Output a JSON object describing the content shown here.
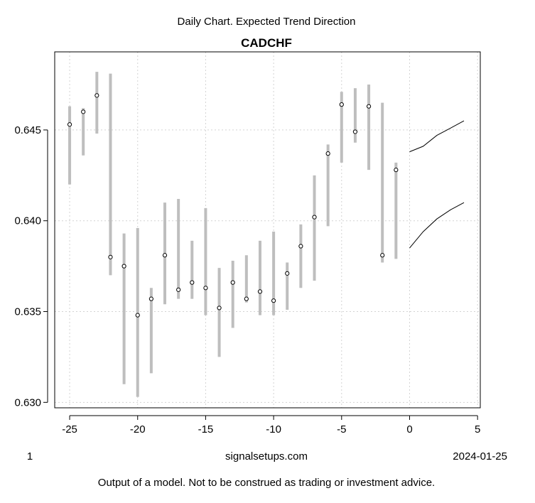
{
  "chart_data": {
    "type": "scatter",
    "subtitle": "Daily Chart. Expected Trend Direction",
    "title": "CADCHF",
    "xlabel": "",
    "ylabel": "",
    "xlim": [
      -26.1,
      5.2
    ],
    "ylim": [
      0.6297,
      0.6493
    ],
    "xticks": [
      -25,
      -20,
      -15,
      -10,
      -5,
      0,
      5
    ],
    "xtick_labels": [
      "-25",
      "-20",
      "-15",
      "-10",
      "-5",
      "0",
      "5"
    ],
    "yticks": [
      0.63,
      0.635,
      0.64,
      0.645
    ],
    "ytick_labels": [
      "0.630",
      "0.635",
      "0.640",
      "0.645"
    ],
    "grid": true,
    "series": [
      {
        "kind": "range",
        "color": "#bebebe",
        "x": [
          -25,
          -24,
          -23,
          -22,
          -21,
          -20,
          -19,
          -18,
          -17,
          -16,
          -15,
          -14,
          -13,
          -12,
          -11,
          -10,
          -9,
          -8,
          -7,
          -6,
          -5,
          -4,
          -3,
          -2,
          -1
        ],
        "low": [
          0.642,
          0.6436,
          0.6448,
          0.637,
          0.631,
          0.6303,
          0.6316,
          0.6354,
          0.6357,
          0.6357,
          0.6348,
          0.6325,
          0.6341,
          0.6355,
          0.6348,
          0.6348,
          0.6351,
          0.6363,
          0.6367,
          0.6397,
          0.6432,
          0.6443,
          0.6428,
          0.6377,
          0.6379
        ],
        "high": [
          0.6463,
          0.6462,
          0.6482,
          0.6481,
          0.6393,
          0.6396,
          0.6363,
          0.641,
          0.6412,
          0.6389,
          0.6407,
          0.6374,
          0.6378,
          0.6381,
          0.6389,
          0.6394,
          0.6377,
          0.6398,
          0.6425,
          0.6442,
          0.6471,
          0.6473,
          0.6475,
          0.6465,
          0.6432
        ]
      },
      {
        "kind": "point",
        "x": [
          -25,
          -24,
          -23,
          -22,
          -21,
          -20,
          -19,
          -18,
          -17,
          -16,
          -15,
          -14,
          -13,
          -12,
          -11,
          -10,
          -9,
          -8,
          -7,
          -6,
          -5,
          -4,
          -3,
          -2,
          -1
        ],
        "y": [
          0.6453,
          0.646,
          0.6469,
          0.638,
          0.6375,
          0.6348,
          0.6357,
          0.6381,
          0.6362,
          0.6366,
          0.6363,
          0.6352,
          0.6366,
          0.6357,
          0.6361,
          0.6356,
          0.6371,
          0.6386,
          0.6402,
          0.6437,
          0.6464,
          0.6449,
          0.6463,
          0.6381,
          0.6428
        ]
      },
      {
        "kind": "line",
        "color": "#000000",
        "x": [
          0,
          1,
          2,
          3,
          4
        ],
        "y": [
          0.6438,
          0.6441,
          0.6447,
          0.6451,
          0.6455
        ]
      },
      {
        "kind": "line",
        "color": "#000000",
        "x": [
          0,
          1,
          2,
          3,
          4
        ],
        "y": [
          0.6385,
          0.6394,
          0.6401,
          0.6406,
          0.641
        ]
      }
    ]
  },
  "footer": {
    "left": "1",
    "center": "signalsetups.com",
    "right": "2024-01-25",
    "disclaimer": "Output of a model. Not to be construed as trading or investment advice."
  }
}
